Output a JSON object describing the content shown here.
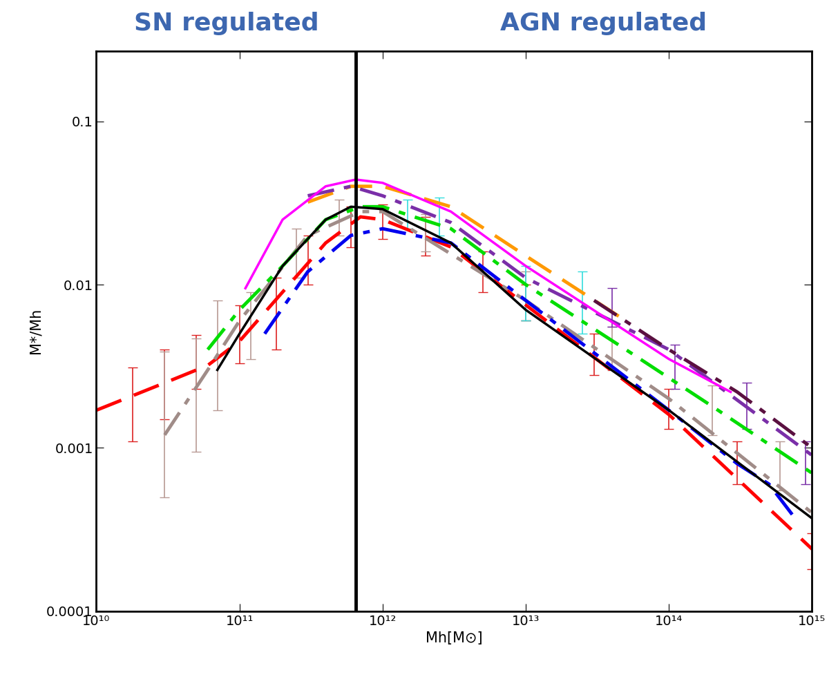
{
  "chart_data": {
    "type": "line",
    "log": true,
    "xlabel": "Mh[M⊙]",
    "ylabel": "M*/Mh",
    "xlim": [
      10000000000.0,
      1000000000000000.0
    ],
    "ylim": [
      0.0001,
      0.27
    ],
    "xticks": [
      {
        "value": 10000000000.0,
        "label": "10¹⁰"
      },
      {
        "value": 100000000000.0,
        "label": "10¹¹"
      },
      {
        "value": 1000000000000.0,
        "label": "10¹²"
      },
      {
        "value": 10000000000000.0,
        "label": "10¹³"
      },
      {
        "value": 100000000000000.0,
        "label": "10¹⁴"
      },
      {
        "value": 1000000000000000.0,
        "label": "10¹⁵"
      }
    ],
    "yticks": [
      0.0001,
      0.001,
      0.01,
      0.1
    ],
    "grid": false,
    "vline": 650000000000.0,
    "annotations": [
      {
        "text": "SN regulated",
        "color": "#3d67b0"
      },
      {
        "text": "AGN regulated",
        "color": "#3d67b0"
      }
    ],
    "series": [
      {
        "color": "#ff0000",
        "line_style": "dashed",
        "x": [
          10000000000.0,
          30000000000.0,
          60000000000.0,
          100000000000.0,
          200000000000.0,
          400000000000.0,
          700000000000.0,
          1000000000000.0,
          3000000000000.0,
          10000000000000.0,
          100000000000000.0,
          1000000000000000.0
        ],
        "values": [
          0.0017,
          0.0025,
          0.0032,
          0.0045,
          0.009,
          0.018,
          0.026,
          0.025,
          0.017,
          0.0075,
          0.0016,
          0.00024
        ]
      },
      {
        "color": "#a08c88",
        "line_style": "dashdot",
        "x": [
          30000000000.0,
          60000000000.0,
          100000000000.0,
          300000000000.0,
          700000000000.0,
          1000000000000.0,
          10000000000000.0,
          100000000000000.0,
          1000000000000000.0
        ],
        "values": [
          0.0012,
          0.003,
          0.006,
          0.02,
          0.028,
          0.028,
          0.008,
          0.002,
          0.0004
        ]
      },
      {
        "color": "#00dd00",
        "line_style": "dashdot",
        "x": [
          60000000000.0,
          100000000000.0,
          200000000000.0,
          400000000000.0,
          700000000000.0,
          1000000000000.0,
          3000000000000.0,
          10000000000000.0,
          50000000000000.0,
          200000000000000.0,
          1000000000000000.0
        ],
        "values": [
          0.004,
          0.007,
          0.013,
          0.025,
          0.03,
          0.03,
          0.022,
          0.01,
          0.004,
          0.0018,
          0.0007
        ]
      },
      {
        "color": "#0000ee",
        "line_style": "dashdot",
        "x": [
          150000000000.0,
          300000000000.0,
          600000000000.0,
          1000000000000.0,
          3000000000000.0,
          10000000000000.0,
          100000000000000.0,
          300000000000000.0,
          500000000000000.0,
          800000000000000.0
        ],
        "values": [
          0.005,
          0.012,
          0.02,
          0.022,
          0.018,
          0.008,
          0.0017,
          0.0008,
          0.0006,
          0.00035
        ]
      },
      {
        "color": "#ff9900",
        "line_style": "dashed",
        "x": [
          300000000000.0,
          600000000000.0,
          1000000000000.0,
          3000000000000.0,
          10000000000000.0,
          50000000000000.0
        ],
        "values": [
          0.032,
          0.04,
          0.04,
          0.03,
          0.015,
          0.006
        ]
      },
      {
        "color": "#7a2fa8",
        "line_style": "dashdot",
        "x": [
          300000000000.0,
          600000000000.0,
          1000000000000.0,
          3000000000000.0,
          10000000000000.0,
          100000000000000.0,
          1000000000000000.0
        ],
        "values": [
          0.035,
          0.04,
          0.035,
          0.024,
          0.011,
          0.004,
          0.0009
        ]
      },
      {
        "color": "#5a1040",
        "line_style": "dashdot",
        "x": [
          30000000000000.0,
          100000000000000.0,
          300000000000000.0,
          1000000000000000.0
        ],
        "values": [
          0.008,
          0.004,
          0.0022,
          0.001
        ]
      },
      {
        "color": "#ff00ff",
        "line_style": "solid",
        "x": [
          110000000000.0,
          200000000000.0,
          400000000000.0,
          650000000000.0,
          1000000000000.0,
          3000000000000.0,
          10000000000000.0,
          100000000000000.0,
          270000000000000.0
        ],
        "values": [
          0.0095,
          0.025,
          0.04,
          0.044,
          0.042,
          0.028,
          0.013,
          0.0035,
          0.0022
        ]
      },
      {
        "color": "#000000",
        "line_style": "solid",
        "x": [
          70000000000.0,
          100000000000.0,
          200000000000.0,
          400000000000.0,
          600000000000.0,
          1000000000000.0,
          3000000000000.0,
          10000000000000.0,
          100000000000000.0,
          1000000000000000.0
        ],
        "values": [
          0.003,
          0.005,
          0.013,
          0.025,
          0.03,
          0.029,
          0.018,
          0.007,
          0.0017,
          0.00037
        ]
      }
    ],
    "error_bars": [
      {
        "color": "#dd2222",
        "x": [
          18000000000.0,
          30000000000.0,
          50000000000.0,
          100000000000.0,
          180000000000.0,
          300000000000.0,
          600000000000.0,
          1000000000000.0,
          2000000000000.0,
          5000000000000.0,
          10000000000000.0,
          30000000000000.0,
          100000000000000.0,
          300000000000000.0,
          1000000000000000.0
        ],
        "values": [
          0.0017,
          0.0025,
          0.0035,
          0.0045,
          0.007,
          0.015,
          0.023,
          0.024,
          0.02,
          0.012,
          0.0077,
          0.0037,
          0.0017,
          0.00085,
          0.00025
        ],
        "error_low": [
          0.0011,
          0.0015,
          0.0023,
          0.0033,
          0.004,
          0.01,
          0.017,
          0.019,
          0.015,
          0.009,
          0.006,
          0.0028,
          0.0013,
          0.0006,
          0.00018
        ],
        "error_high": [
          0.0031,
          0.004,
          0.0049,
          0.0075,
          0.011,
          0.02,
          0.03,
          0.031,
          0.026,
          0.016,
          0.01,
          0.005,
          0.0023,
          0.0011,
          0.0003
        ]
      },
      {
        "color": "#b89a94",
        "x": [
          30000000000.0,
          50000000000.0,
          70000000000.0,
          120000000000.0,
          250000000000.0,
          500000000000.0,
          2000000000000.0,
          10000000000000.0,
          40000000000000.0,
          200000000000000.0,
          600000000000000.0
        ],
        "values": [
          0.0012,
          0.0028,
          0.0035,
          0.0055,
          0.017,
          0.026,
          0.02,
          0.0085,
          0.004,
          0.0017,
          0.0008
        ],
        "error_low": [
          0.0005,
          0.00095,
          0.0017,
          0.0035,
          0.011,
          0.02,
          0.016,
          0.006,
          0.003,
          0.0012,
          0.00055
        ],
        "error_high": [
          0.0039,
          0.0047,
          0.008,
          0.009,
          0.022,
          0.033,
          0.027,
          0.012,
          0.0055,
          0.0024,
          0.0011
        ]
      },
      {
        "color": "#33dddd",
        "x": [
          1500000000000.0,
          2500000000000.0,
          10000000000000.0,
          25000000000000.0
        ],
        "values": [
          0.027,
          0.026,
          0.009,
          0.007
        ],
        "error_low": [
          0.022,
          0.02,
          0.006,
          0.005
        ],
        "error_high": [
          0.033,
          0.034,
          0.013,
          0.012
        ]
      },
      {
        "color": "#7a2fa8",
        "x": [
          40000000000000.0,
          110000000000000.0,
          350000000000000.0,
          900000000000000.0
        ],
        "values": [
          0.0075,
          0.0032,
          0.0018,
          0.0008
        ],
        "error_low": [
          0.0055,
          0.0023,
          0.0013,
          0.0006
        ],
        "error_high": [
          0.0095,
          0.0043,
          0.0025,
          0.0011
        ]
      }
    ]
  }
}
